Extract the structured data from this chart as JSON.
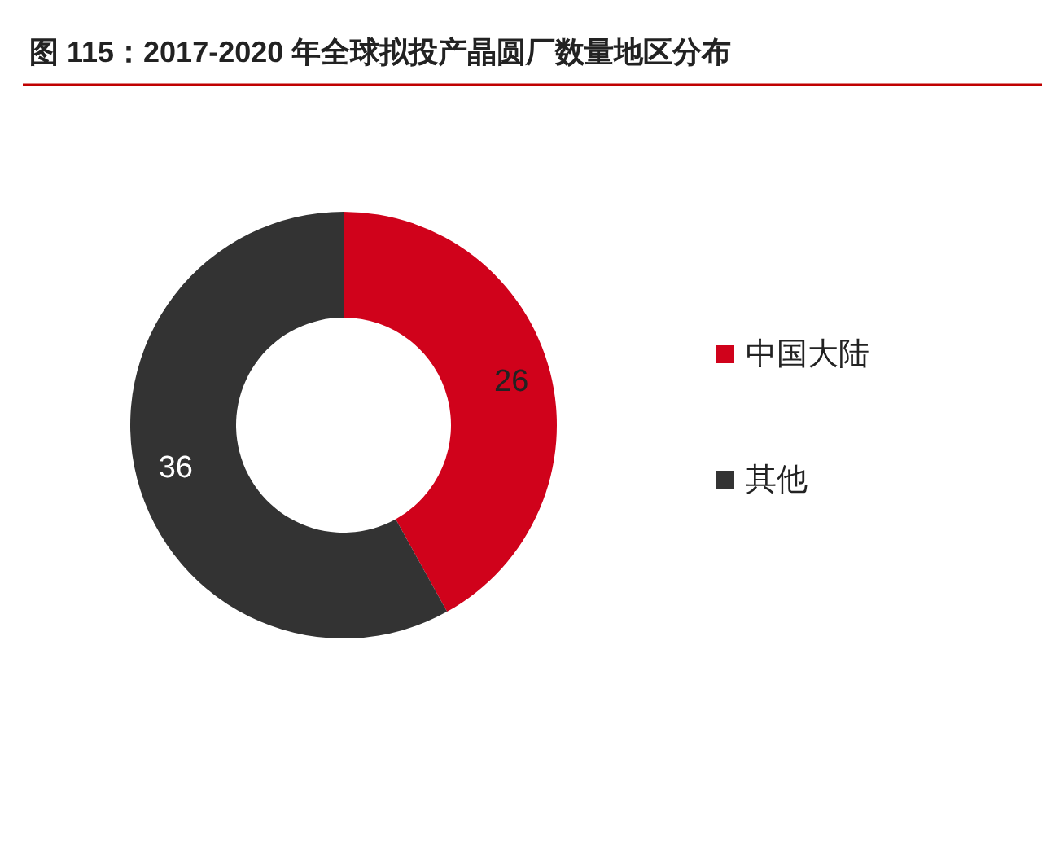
{
  "chart_data": {
    "type": "donut",
    "title": "图 115：2017-2020 年全球拟投产晶圆厂数量地区分布",
    "categories": [
      "中国大陆",
      "其他"
    ],
    "values": [
      26,
      36
    ],
    "colors": [
      "#d0021b",
      "#333333"
    ],
    "data_labels": true,
    "legend": "right"
  }
}
